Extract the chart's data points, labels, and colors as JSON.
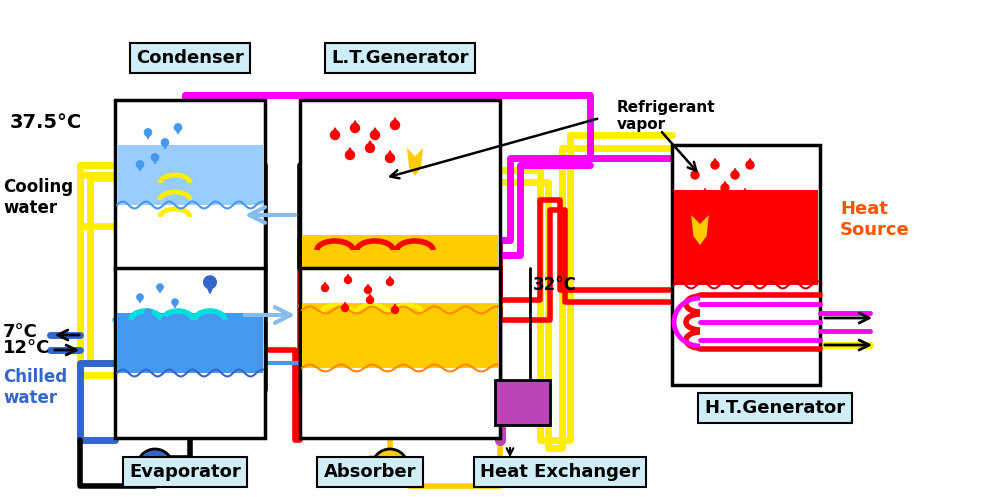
{
  "bg_color": "#ffffff",
  "labels": {
    "condenser": "Condenser",
    "lt_generator": "L.T.Generator",
    "evaporator": "Evaporator",
    "absorber": "Absorber",
    "heat_exchanger": "Heat Exchanger",
    "ht_generator": "H.T.Generator",
    "refrigerant_vapor": "Refrigerant\nvapor",
    "heat_source": "Heat\nSource",
    "cooling_water": "Cooling\nwater",
    "chilled_water": "Chilled\nwater",
    "temp_375": "37.5°C",
    "temp_7": "7°C",
    "temp_12": "12°C",
    "temp_32": "32°C"
  },
  "colors": {
    "label_box_bg": "#d0eef8",
    "yellow": "#ffee00",
    "magenta": "#ff00ff",
    "red": "#ff0000",
    "dark_red": "#cc0000",
    "cyan": "#00dddd",
    "gold": "#ffcc00",
    "orange": "#ff8800",
    "light_blue_arrow": "#88bbee",
    "pump_blue": "#3366cc",
    "pump_gold": "#ffcc00",
    "water_blue": "#4499ee",
    "water_blue_light": "#99ccff",
    "liquid_gold": "#ffcc00",
    "purple": "#bb44bb",
    "black": "#000000",
    "white": "#ffffff",
    "heat_source_text": "#ff5500"
  }
}
